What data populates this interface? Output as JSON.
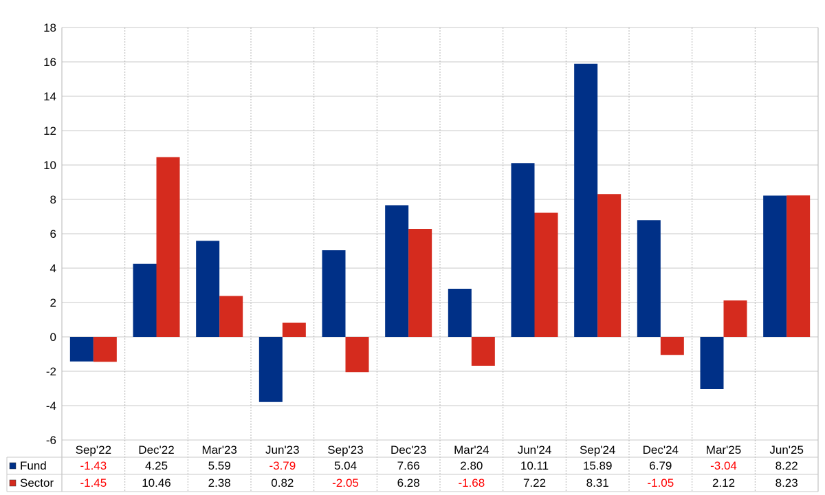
{
  "chart_data": {
    "type": "bar",
    "categories": [
      "Sep'22",
      "Dec'22",
      "Mar'23",
      "Jun'23",
      "Sep'23",
      "Dec'23",
      "Mar'24",
      "Jun'24",
      "Sep'24",
      "Dec'24",
      "Mar'25",
      "Jun'25"
    ],
    "series": [
      {
        "name": "Fund",
        "color": "#003087",
        "values": [
          -1.43,
          4.25,
          5.59,
          -3.79,
          5.04,
          7.66,
          2.8,
          10.11,
          15.89,
          6.79,
          -3.04,
          8.22
        ],
        "labels": [
          "-1.43",
          "4.25",
          "5.59",
          "-3.79",
          "5.04",
          "7.66",
          "2.80",
          "10.11",
          "15.89",
          "6.79",
          "-3.04",
          "8.22"
        ]
      },
      {
        "name": "Sector",
        "color": "#d52b1e",
        "values": [
          -1.45,
          10.46,
          2.38,
          0.82,
          -2.05,
          6.28,
          -1.68,
          7.22,
          8.31,
          -1.05,
          2.12,
          8.23
        ],
        "labels": [
          "-1.45",
          "10.46",
          "2.38",
          "0.82",
          "-2.05",
          "6.28",
          "-1.68",
          "7.22",
          "8.31",
          "-1.05",
          "2.12",
          "8.23"
        ]
      }
    ],
    "ylim": [
      -6,
      18
    ],
    "yticks": [
      -6,
      -4,
      -2,
      0,
      2,
      4,
      6,
      8,
      10,
      12,
      14,
      16,
      18
    ],
    "grid": true,
    "data_table": true,
    "negative_value_color": "#ff0000"
  }
}
